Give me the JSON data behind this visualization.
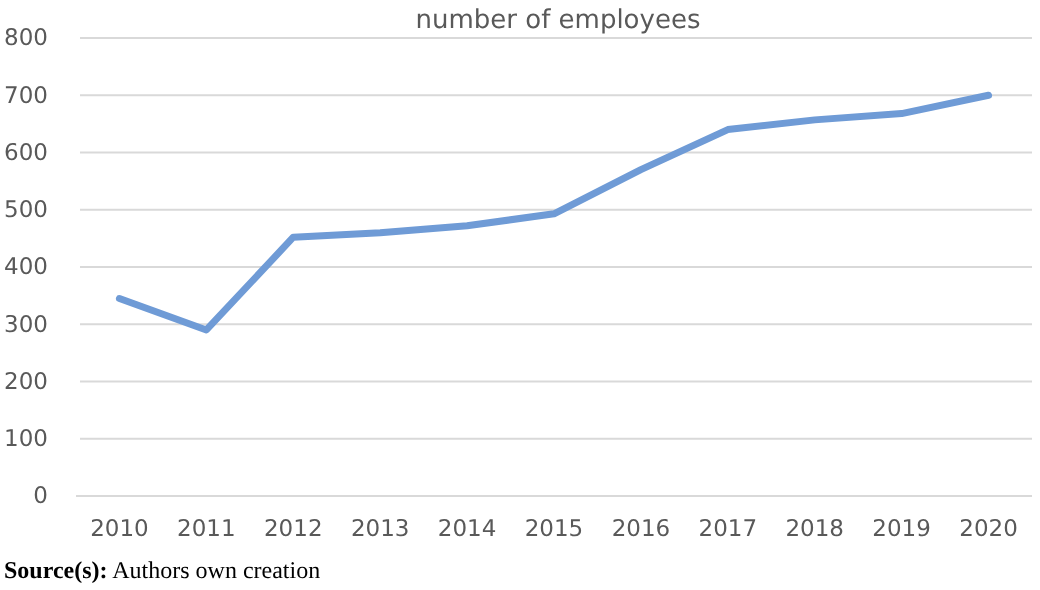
{
  "chart_data": {
    "type": "line",
    "title": "number of employees",
    "categories": [
      "2010",
      "2011",
      "2012",
      "2013",
      "2014",
      "2015",
      "2016",
      "2017",
      "2018",
      "2019",
      "2020"
    ],
    "series": [
      {
        "color": "#6f9bd6",
        "values": [
          345,
          290,
          452,
          460,
          472,
          493,
          570,
          640,
          657,
          668,
          700
        ]
      }
    ],
    "ylim": [
      0,
      800
    ],
    "yticks": [
      0,
      100,
      200,
      300,
      400,
      500,
      600,
      700,
      800
    ],
    "grid": "y",
    "marker": "none",
    "line_style": "solid",
    "annotations": [
      "Source(s): Authors own creation"
    ]
  }
}
